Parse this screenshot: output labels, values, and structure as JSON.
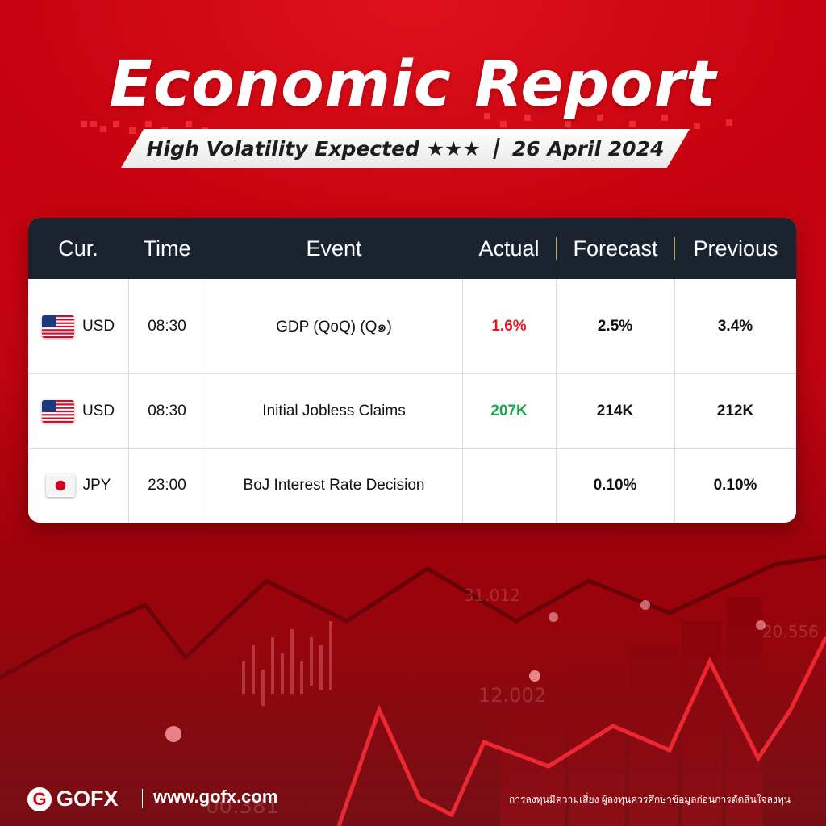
{
  "header": {
    "title": "Economic Report",
    "subtitle": "High Volatility Expected ★★★",
    "date": "26 April 2024"
  },
  "table": {
    "columns": [
      "Cur.",
      "Time",
      "Event",
      "Actual",
      "Forecast",
      "Previous"
    ],
    "rows": [
      {
        "currency": "USD",
        "flag": "us-flag-icon",
        "time": "08:30",
        "event": "GDP (QoQ) (Q๑)",
        "actual": "1.6%",
        "actual_color": "#e01b24",
        "forecast": "2.5%",
        "previous": "3.4%"
      },
      {
        "currency": "USD",
        "flag": "us-flag-icon",
        "time": "08:30",
        "event": "Initial Jobless Claims",
        "actual": "207K",
        "actual_color": "#1fa54a",
        "forecast": "214K",
        "previous": "212K"
      },
      {
        "currency": "JPY",
        "flag": "japan-flag-icon",
        "time": "23:00",
        "event": "BoJ Interest Rate Decision",
        "actual": "",
        "forecast": "0.10%",
        "previous": "0.10%"
      }
    ]
  },
  "background_numbers": [
    "31.012",
    "20.556",
    "12.002",
    "00.381"
  ],
  "footer": {
    "brand": "GOFX",
    "logo_letter": "G",
    "website": "www.gofx.com",
    "disclaimer": "การลงทุนมีความเสี่ยง ผู้ลงทุนควรศึกษาข้อมูลก่อนการตัดสินใจลงทุน"
  },
  "colors": {
    "brand_red": "#d4040f",
    "header_dark": "#1b232f",
    "down": "#e01b24",
    "up": "#1fa54a"
  }
}
